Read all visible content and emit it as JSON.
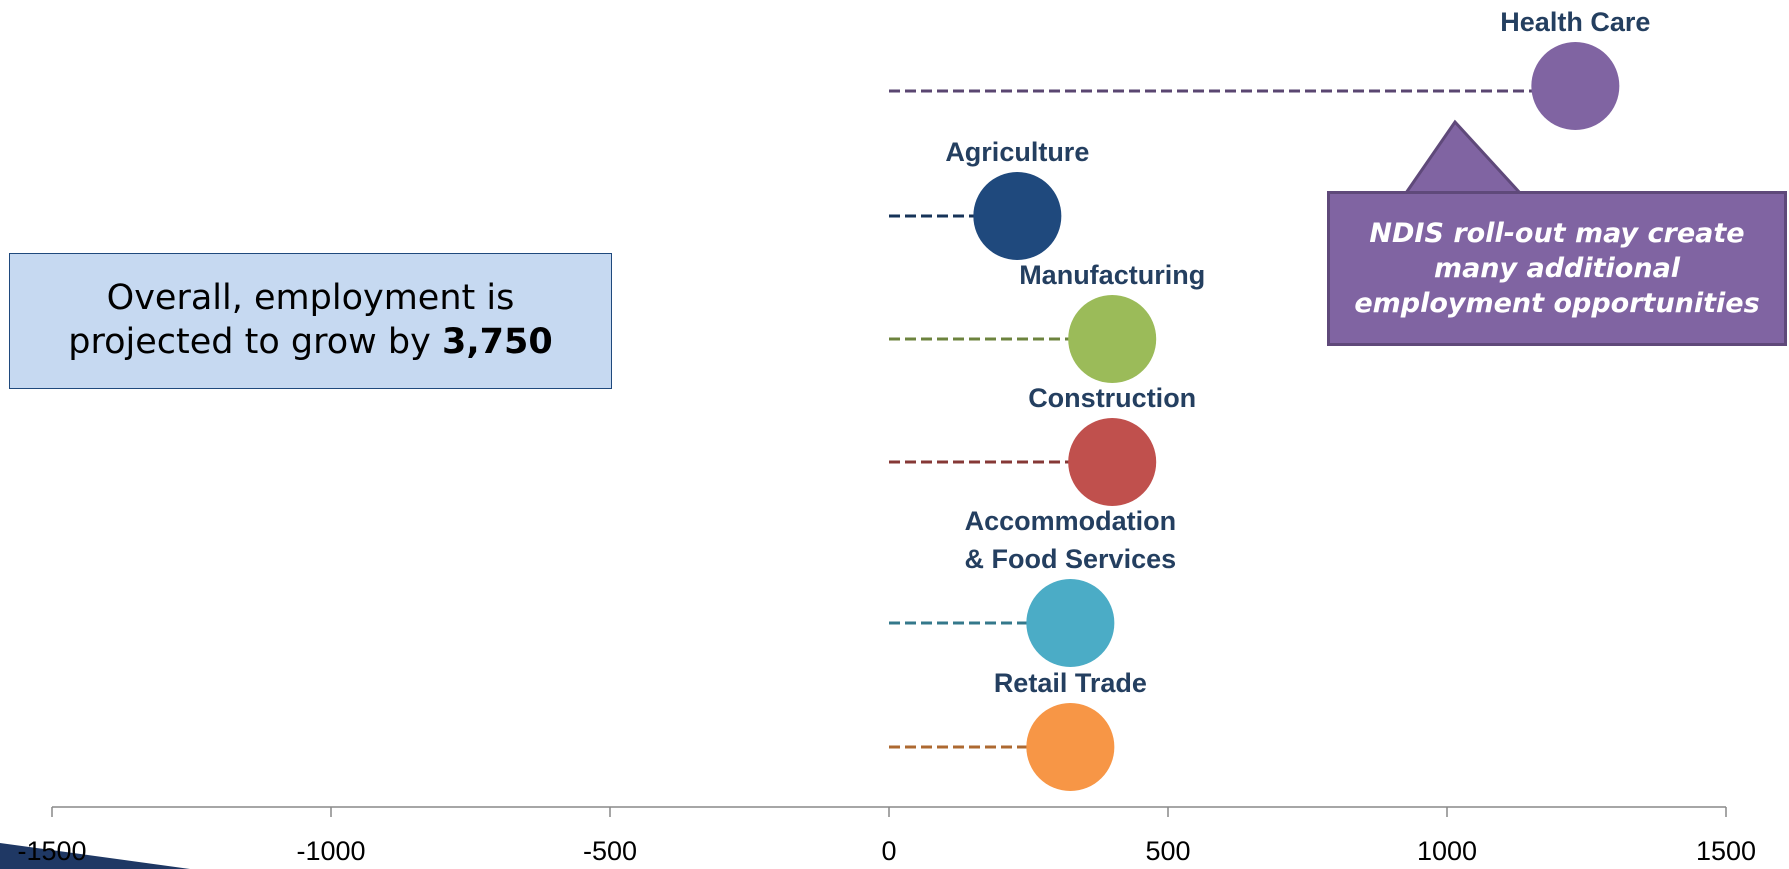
{
  "chart_data": {
    "type": "dot",
    "categories": [
      "Health Care",
      "Agriculture",
      "Manufacturing",
      "Construction",
      "Accommodation & Food Services",
      "Retail Trade"
    ],
    "values": [
      1230,
      230,
      400,
      400,
      325,
      325
    ],
    "colors": [
      "#8064a2",
      "#1f497d",
      "#9bbb59",
      "#c0504d",
      "#4bacc6",
      "#f79646"
    ],
    "xlim": [
      -1500,
      1500
    ],
    "xticks": [
      -1500,
      -1000,
      -500,
      0,
      500,
      1000,
      1500
    ],
    "annotations": {
      "overall": {
        "text": "Overall, employment is projected to grow by",
        "bold": "3,750"
      },
      "callout": "NDIS roll-out may create many additional employment opportunities"
    }
  }
}
